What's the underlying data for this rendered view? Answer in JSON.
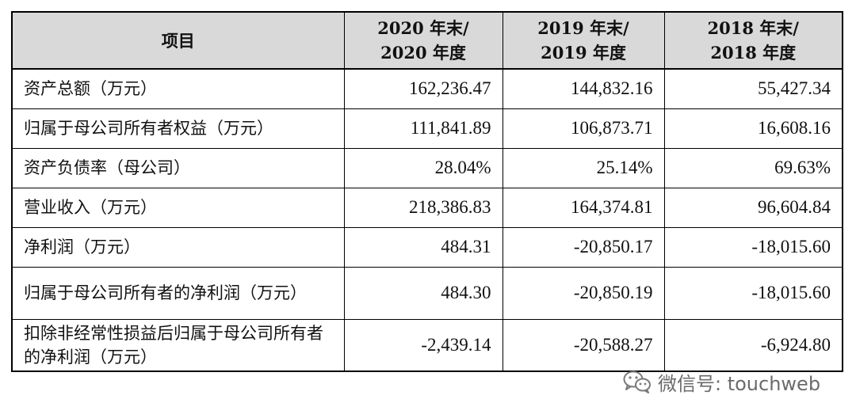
{
  "table": {
    "headers": [
      {
        "line1": "项目",
        "line2": ""
      },
      {
        "line1": "2020 年末/",
        "line2": "2020 年度"
      },
      {
        "line1": "2019 年末/",
        "line2": "2019 年度"
      },
      {
        "line1": "2018 年末/",
        "line2": "2018 年度"
      }
    ],
    "rows": [
      {
        "label": "资产总额（万元）",
        "values": [
          "162,236.47",
          "144,832.16",
          "55,427.34"
        ]
      },
      {
        "label": "归属于母公司所有者权益（万元）",
        "values": [
          "111,841.89",
          "106,873.71",
          "16,608.16"
        ]
      },
      {
        "label": "资产负债率（母公司）",
        "values": [
          "28.04%",
          "25.14%",
          "69.63%"
        ]
      },
      {
        "label": "营业收入（万元）",
        "values": [
          "218,386.83",
          "164,374.81",
          "96,604.84"
        ]
      },
      {
        "label": "净利润（万元）",
        "values": [
          "484.31",
          "-20,850.17",
          "-18,015.60"
        ]
      },
      {
        "label": "归属于母公司所有者的净利润（万元）",
        "values": [
          "484.30",
          "-20,850.19",
          "-18,015.60"
        ]
      },
      {
        "label": "扣除非经常性损益后归属于母公司所有者的净利润（万元）",
        "values": [
          "-2,439.14",
          "-20,588.27",
          "-6,924.80"
        ]
      }
    ]
  },
  "watermark": {
    "text": "微信号: touchweb",
    "icon": "wechat-icon",
    "color": "#6b6b6b"
  },
  "colors": {
    "header_bg": "#d9d9d9",
    "border": "#000000"
  }
}
